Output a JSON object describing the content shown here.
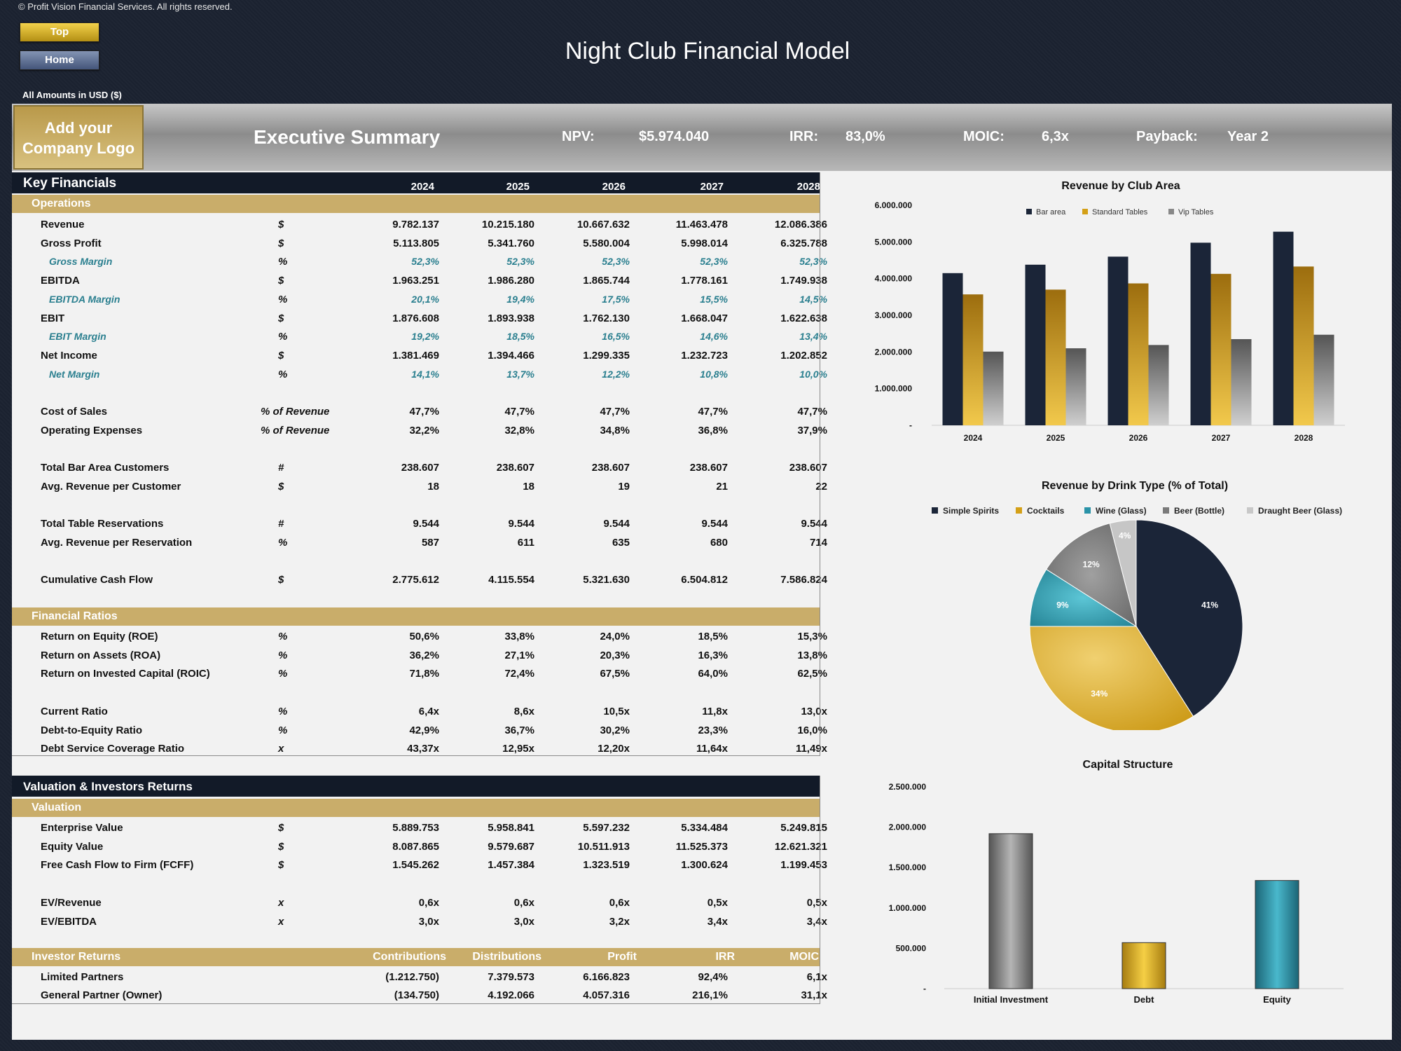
{
  "copyright": "© Profit Vision Financial Services. All rights reserved.",
  "buttons": {
    "top": "Top",
    "home": "Home"
  },
  "title": "Night Club Financial Model",
  "amounts_note": "All Amounts in  USD ($)",
  "banner": {
    "logo": "Add your Company Logo",
    "summary_title": "Executive Summary",
    "npv_label": "NPV:",
    "npv_value": "$5.974.040",
    "irr_label": "IRR:",
    "irr_value": "83,0%",
    "moic_label": "MOIC:",
    "moic_value": "6,3x",
    "payback_label": "Payback:",
    "payback_value": "Year 2"
  },
  "key_financials": {
    "title": "Key Financials",
    "years": [
      "2024",
      "2025",
      "2026",
      "2027",
      "2028"
    ],
    "operations_label": "Operations",
    "rows": [
      {
        "label": "Revenue",
        "unit": "$",
        "values": [
          "9.782.137",
          "10.215.180",
          "10.667.632",
          "11.463.478",
          "12.086.386"
        ]
      },
      {
        "label": "Gross Profit",
        "unit": "$",
        "values": [
          "5.113.805",
          "5.341.760",
          "5.580.004",
          "5.998.014",
          "6.325.788"
        ]
      },
      {
        "label": "Gross Margin",
        "unit": "%",
        "values": [
          "52,3%",
          "52,3%",
          "52,3%",
          "52,3%",
          "52,3%"
        ],
        "sub": true
      },
      {
        "label": "EBITDA",
        "unit": "$",
        "values": [
          "1.963.251",
          "1.986.280",
          "1.865.744",
          "1.778.161",
          "1.749.938"
        ]
      },
      {
        "label": "EBITDA Margin",
        "unit": "%",
        "values": [
          "20,1%",
          "19,4%",
          "17,5%",
          "15,5%",
          "14,5%"
        ],
        "sub": true
      },
      {
        "label": "EBIT",
        "unit": "$",
        "values": [
          "1.876.608",
          "1.893.938",
          "1.762.130",
          "1.668.047",
          "1.622.638"
        ]
      },
      {
        "label": "EBIT Margin",
        "unit": "%",
        "values": [
          "19,2%",
          "18,5%",
          "16,5%",
          "14,6%",
          "13,4%"
        ],
        "sub": true
      },
      {
        "label": "Net Income",
        "unit": "$",
        "values": [
          "1.381.469",
          "1.394.466",
          "1.299.335",
          "1.232.723",
          "1.202.852"
        ]
      },
      {
        "label": "Net Margin",
        "unit": "%",
        "values": [
          "14,1%",
          "13,7%",
          "12,2%",
          "10,8%",
          "10,0%"
        ],
        "sub": true
      },
      {
        "label": "",
        "unit": "",
        "values": [
          "",
          "",
          "",
          "",
          ""
        ]
      },
      {
        "label": "Cost of Sales",
        "unit": "% of Revenue",
        "values": [
          "47,7%",
          "47,7%",
          "47,7%",
          "47,7%",
          "47,7%"
        ]
      },
      {
        "label": "Operating Expenses",
        "unit": "% of Revenue",
        "values": [
          "32,2%",
          "32,8%",
          "34,8%",
          "36,8%",
          "37,9%"
        ]
      },
      {
        "label": "",
        "unit": "",
        "values": [
          "",
          "",
          "",
          "",
          ""
        ]
      },
      {
        "label": "Total Bar Area Customers",
        "unit": "#",
        "values": [
          "238.607",
          "238.607",
          "238.607",
          "238.607",
          "238.607"
        ]
      },
      {
        "label": "Avg. Revenue per Customer",
        "unit": "$",
        "values": [
          "18",
          "18",
          "19",
          "21",
          "22"
        ]
      },
      {
        "label": "",
        "unit": "",
        "values": [
          "",
          "",
          "",
          "",
          ""
        ]
      },
      {
        "label": "Total Table Reservations",
        "unit": "#",
        "values": [
          "9.544",
          "9.544",
          "9.544",
          "9.544",
          "9.544"
        ]
      },
      {
        "label": "Avg. Revenue per Reservation",
        "unit": "%",
        "values": [
          "587",
          "611",
          "635",
          "680",
          "714"
        ]
      },
      {
        "label": "",
        "unit": "",
        "values": [
          "",
          "",
          "",
          "",
          ""
        ]
      },
      {
        "label": "Cumulative Cash Flow",
        "unit": "$",
        "values": [
          "2.775.612",
          "4.115.554",
          "5.321.630",
          "6.504.812",
          "7.586.824"
        ]
      }
    ],
    "ratios_label": "Financial Ratios",
    "ratio_rows": [
      {
        "label": "Return on Equity (ROE)",
        "unit": "%",
        "values": [
          "50,6%",
          "33,8%",
          "24,0%",
          "18,5%",
          "15,3%"
        ]
      },
      {
        "label": "Return on Assets (ROA)",
        "unit": "%",
        "values": [
          "36,2%",
          "27,1%",
          "20,3%",
          "16,3%",
          "13,8%"
        ]
      },
      {
        "label": "Return on Invested Capital (ROIC)",
        "unit": "%",
        "values": [
          "71,8%",
          "72,4%",
          "67,5%",
          "64,0%",
          "62,5%"
        ]
      },
      {
        "label": "",
        "unit": "",
        "values": [
          "",
          "",
          "",
          "",
          ""
        ]
      },
      {
        "label": "Current Ratio",
        "unit": "%",
        "values": [
          "6,4x",
          "8,6x",
          "10,5x",
          "11,8x",
          "13,0x"
        ]
      },
      {
        "label": "Debt-to-Equity Ratio",
        "unit": "%",
        "values": [
          "42,9%",
          "36,7%",
          "30,2%",
          "23,3%",
          "16,0%"
        ]
      },
      {
        "label": "Debt Service Coverage Ratio",
        "unit": "x",
        "values": [
          "43,37x",
          "12,95x",
          "12,20x",
          "11,64x",
          "11,49x"
        ]
      }
    ]
  },
  "valuation": {
    "title": "Valuation & Investors Returns",
    "valuation_label": "Valuation",
    "rows": [
      {
        "label": "Enterprise Value",
        "unit": "$",
        "values": [
          "5.889.753",
          "5.958.841",
          "5.597.232",
          "5.334.484",
          "5.249.815"
        ]
      },
      {
        "label": "Equity Value",
        "unit": "$",
        "values": [
          "8.087.865",
          "9.579.687",
          "10.511.913",
          "11.525.373",
          "12.621.321"
        ]
      },
      {
        "label": "Free Cash Flow to Firm (FCFF)",
        "unit": "$",
        "values": [
          "1.545.262",
          "1.457.384",
          "1.323.519",
          "1.300.624",
          "1.199.453"
        ]
      },
      {
        "label": "",
        "unit": "",
        "values": [
          "",
          "",
          "",
          "",
          ""
        ]
      },
      {
        "label": "EV/Revenue",
        "unit": "x",
        "values": [
          "0,6x",
          "0,6x",
          "0,6x",
          "0,5x",
          "0,5x"
        ]
      },
      {
        "label": "EV/EBITDA",
        "unit": "x",
        "values": [
          "3,0x",
          "3,0x",
          "3,2x",
          "3,4x",
          "3,4x"
        ]
      }
    ],
    "investor_label": "Investor Returns",
    "investor_cols": [
      "Contributions",
      "Distributions",
      "Profit",
      "IRR",
      "MOIC"
    ],
    "investor_rows": [
      {
        "label": "Limited Partners",
        "values": [
          "(1.212.750)",
          "7.379.573",
          "6.166.823",
          "92,4%",
          "6,1x"
        ]
      },
      {
        "label": "General Partner (Owner)",
        "values": [
          "(134.750)",
          "4.192.066",
          "4.057.316",
          "216,1%",
          "31,1x"
        ]
      }
    ]
  },
  "colors": {
    "navy": "#1b2538",
    "gold": "#d4a017",
    "gray": "#7a7a7a",
    "teal": "#2a93a8",
    "lightgray": "#c8c8c8",
    "band": "#c9ad6a"
  },
  "chart_data": [
    {
      "type": "bar",
      "title": "Revenue by Club Area",
      "categories": [
        "2024",
        "2025",
        "2026",
        "2027",
        "2028"
      ],
      "series": [
        {
          "name": "Bar area",
          "values": [
            4150000,
            4380000,
            4600000,
            4980000,
            5280000
          ]
        },
        {
          "name": "Standard Tables",
          "values": [
            3570000,
            3700000,
            3870000,
            4130000,
            4330000
          ]
        },
        {
          "name": "Vip Tables",
          "values": [
            2010000,
            2100000,
            2190000,
            2350000,
            2470000
          ]
        }
      ],
      "ylim": [
        0,
        6000000
      ],
      "yticks": [
        "-",
        "1.000.000",
        "2.000.000",
        "3.000.000",
        "4.000.000",
        "5.000.000",
        "6.000.000"
      ],
      "legend": "top"
    },
    {
      "type": "pie",
      "title": "Revenue by Drink Type (% of Total)",
      "labels": [
        "Simple Spirits",
        "Cocktails",
        "Wine (Glass)",
        "Beer (Bottle)",
        "Draught Beer (Glass)"
      ],
      "values": [
        41,
        34,
        9,
        12,
        4
      ],
      "data_labels": [
        "41%",
        "34%",
        "9%",
        "12%",
        "4%"
      ],
      "legend": "top"
    },
    {
      "type": "bar",
      "title": "Capital Structure",
      "categories": [
        "Initial Investment",
        "Debt",
        "Equity"
      ],
      "values": [
        1920000,
        570000,
        1340000
      ],
      "ylim": [
        0,
        2500000
      ],
      "yticks": [
        "-",
        "500.000",
        "1.000.000",
        "1.500.000",
        "2.000.000",
        "2.500.000"
      ]
    }
  ]
}
